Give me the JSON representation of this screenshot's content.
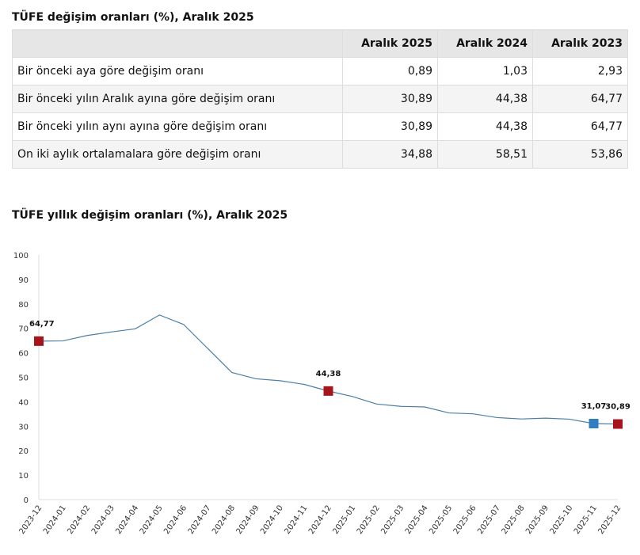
{
  "table": {
    "title": "TÜFE değişim oranları (%), Aralık 2025",
    "headers": [
      "",
      "Aralık 2025",
      "Aralık 2024",
      "Aralık 2023"
    ],
    "rows": [
      {
        "label": "Bir önceki aya göre değişim oranı",
        "values": [
          "0,89",
          "1,03",
          "2,93"
        ]
      },
      {
        "label": "Bir önceki yılın Aralık ayına göre değişim oranı",
        "values": [
          "30,89",
          "44,38",
          "64,77"
        ]
      },
      {
        "label": "Bir önceki yılın aynı ayına göre değişim oranı",
        "values": [
          "30,89",
          "44,38",
          "64,77"
        ]
      },
      {
        "label": "On iki aylık ortalamalara göre değişim oranı",
        "values": [
          "34,88",
          "58,51",
          "53,86"
        ]
      }
    ]
  },
  "chart_data": {
    "type": "line",
    "title": "TÜFE yıllık değişim oranları (%), Aralık 2025",
    "x": [
      "2023-12",
      "2024-01",
      "2024-02",
      "2024-03",
      "2024-04",
      "2024-05",
      "2024-06",
      "2024-07",
      "2024-08",
      "2024-09",
      "2024-10",
      "2024-11",
      "2024-12",
      "2025-01",
      "2025-02",
      "2025-03",
      "2025-04",
      "2025-05",
      "2025-06",
      "2025-07",
      "2025-08",
      "2025-09",
      "2025-10",
      "2025-11",
      "2025-12"
    ],
    "values": [
      64.77,
      64.86,
      67.07,
      68.5,
      69.8,
      75.45,
      71.6,
      61.78,
      51.97,
      49.38,
      48.58,
      47.09,
      44.38,
      42.12,
      39.05,
      38.1,
      37.86,
      35.41,
      35.05,
      33.52,
      32.95,
      33.29,
      32.87,
      31.07,
      30.89
    ],
    "ylim": [
      0,
      100
    ],
    "yticks": [
      0,
      10,
      20,
      30,
      40,
      50,
      60,
      70,
      80,
      90,
      100
    ],
    "grid": false,
    "line_color": "#4a7fa8",
    "markers": [
      {
        "index": 0,
        "label": "64,77",
        "color": "#a8141c"
      },
      {
        "index": 12,
        "label": "44,38",
        "color": "#a8141c"
      },
      {
        "index": 23,
        "label": "31,07",
        "color": "#2e7ec1"
      },
      {
        "index": 24,
        "label": "30,89",
        "color": "#a8141c"
      }
    ]
  }
}
